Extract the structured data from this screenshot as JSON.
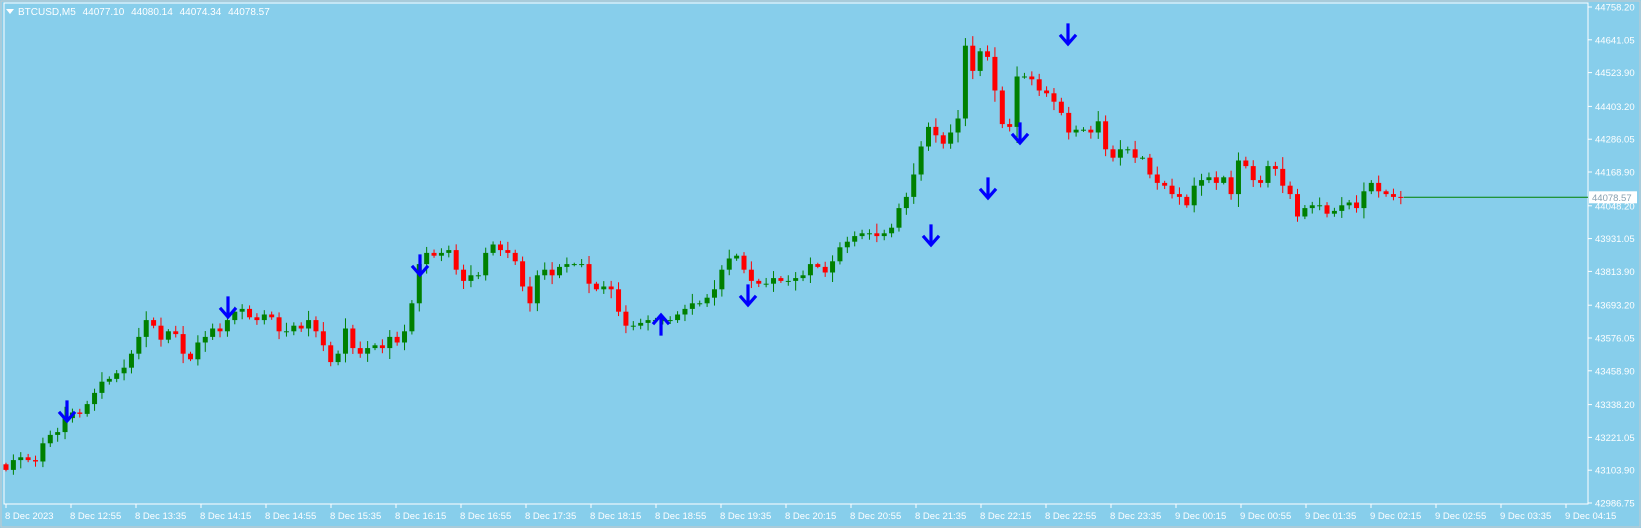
{
  "header": {
    "symbol": "BTCUSD,M5",
    "open": "44077.10",
    "high": "44080.14",
    "low": "44074.34",
    "close": "44078.57"
  },
  "colors": {
    "background": "#87ceeb",
    "bull": "#008000",
    "bear": "#ff0000",
    "arrow": "#0000ff",
    "frame": "#ffffff"
  },
  "price_label": "44078.57",
  "chart_data": {
    "type": "candlestick",
    "title": "BTCUSD,M5",
    "y_ticks": [
      "44758.20",
      "44641.05",
      "44523.90",
      "44403.20",
      "44286.05",
      "44168.90",
      "44048.20",
      "43931.05",
      "43813.90",
      "43693.20",
      "43576.05",
      "43458.90",
      "43338.20",
      "43221.05",
      "43103.90",
      "42986.75"
    ],
    "x_ticks": [
      "8 Dec 2023",
      "8 Dec 12:55",
      "8 Dec 13:35",
      "8 Dec 14:15",
      "8 Dec 14:55",
      "8 Dec 15:35",
      "8 Dec 16:15",
      "8 Dec 16:55",
      "8 Dec 17:35",
      "8 Dec 18:15",
      "8 Dec 18:55",
      "8 Dec 19:35",
      "8 Dec 20:15",
      "8 Dec 20:55",
      "8 Dec 21:35",
      "8 Dec 22:15",
      "8 Dec 22:55",
      "8 Dec 23:35",
      "9 Dec 00:15",
      "9 Dec 00:55",
      "9 Dec 01:35",
      "9 Dec 02:15",
      "9 Dec 02:55",
      "9 Dec 03:35",
      "9 Dec 04:15"
    ],
    "ylim": [
      42986.75,
      44758.2
    ],
    "grid": false,
    "close": [
      43105,
      43140,
      43150,
      43140,
      43135,
      43200,
      43230,
      43240,
      43290,
      43310,
      43305,
      43340,
      43380,
      43420,
      43430,
      43450,
      43470,
      43520,
      43580,
      43640,
      43620,
      43570,
      43600,
      43590,
      43520,
      43500,
      43560,
      43580,
      43610,
      43600,
      43640,
      43670,
      43680,
      43650,
      43640,
      43660,
      43650,
      43600,
      43600,
      43620,
      43610,
      43640,
      43600,
      43550,
      43490,
      43520,
      43610,
      43540,
      43520,
      43540,
      43550,
      43540,
      43580,
      43560,
      43600,
      43700,
      43840,
      43880,
      43870,
      43880,
      43890,
      43820,
      43780,
      43800,
      43800,
      43880,
      43910,
      43890,
      43880,
      43850,
      43760,
      43700,
      43800,
      43820,
      43800,
      43830,
      43840,
      43840,
      43840,
      43770,
      43750,
      43760,
      43750,
      43670,
      43620,
      43620,
      43630,
      43640,
      43640,
      43640,
      43640,
      43660,
      43680,
      43700,
      43700,
      43720,
      43750,
      43820,
      43860,
      43870,
      43820,
      43780,
      43770,
      43770,
      43790,
      43780,
      43780,
      43790,
      43800,
      43840,
      43830,
      43810,
      43850,
      43900,
      43920,
      43940,
      43950,
      43950,
      43940,
      43950,
      43970,
      44040,
      44080,
      44160,
      44260,
      44330,
      44300,
      44270,
      44310,
      44360,
      44620,
      44530,
      44600,
      44580,
      44460,
      44340,
      44330,
      44510,
      44510,
      44500,
      44460,
      44450,
      44420,
      44380,
      44310,
      44320,
      44320,
      44310,
      44350,
      44250,
      44220,
      44250,
      44250,
      44220,
      44220,
      44160,
      44130,
      44120,
      44090,
      44080,
      44050,
      44120,
      44140,
      44150,
      44130,
      44150,
      44090,
      44210,
      44190,
      44140,
      44130,
      44190,
      44180,
      44120,
      44090,
      44010,
      44040,
      44050,
      44050,
      44020,
      44030,
      44050,
      44060,
      44040,
      44100,
      44130,
      44100,
      44090,
      44080,
      44078.57
    ]
  }
}
